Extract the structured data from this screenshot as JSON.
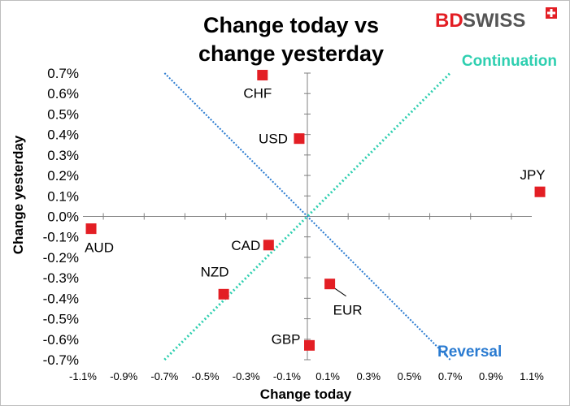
{
  "chart_data": {
    "type": "scatter",
    "title_lines": [
      "Change today vs",
      "change yesterday"
    ],
    "xlabel": "Change today",
    "ylabel": "Change yesterday",
    "xlim": [
      -1.1,
      1.1
    ],
    "ylim": [
      -0.7,
      0.7
    ],
    "x_ticks": [
      "-1.1%",
      "-0.9%",
      "-0.7%",
      "-0.5%",
      "-0.3%",
      "-0.1%",
      "0.1%",
      "0.3%",
      "0.5%",
      "0.7%",
      "0.9%",
      "1.1%"
    ],
    "y_ticks": [
      "0.7%",
      "0.6%",
      "0.5%",
      "0.4%",
      "0.3%",
      "0.2%",
      "0.1%",
      "0.0%",
      "-0.1%",
      "-0.2%",
      "-0.3%",
      "-0.4%",
      "-0.5%",
      "-0.6%",
      "-0.7%"
    ],
    "grid": false,
    "points": [
      {
        "label": "CHF",
        "x": -0.22,
        "y": 0.69
      },
      {
        "label": "USD",
        "x": -0.04,
        "y": 0.38
      },
      {
        "label": "JPY",
        "x": 1.14,
        "y": 0.12
      },
      {
        "label": "AUD",
        "x": -1.06,
        "y": -0.06
      },
      {
        "label": "CAD",
        "x": -0.19,
        "y": -0.14
      },
      {
        "label": "NZD",
        "x": -0.41,
        "y": -0.38
      },
      {
        "label": "EUR",
        "x": 0.11,
        "y": -0.33
      },
      {
        "label": "GBP",
        "x": 0.01,
        "y": -0.63
      }
    ],
    "marker_color": "#e31e24",
    "lines": [
      {
        "name": "Continuation",
        "from": [
          -0.7,
          -0.7
        ],
        "to": [
          0.7,
          0.7
        ],
        "color": "#2ecfb0"
      },
      {
        "name": "Reversal",
        "from": [
          -0.7,
          0.7
        ],
        "to": [
          0.7,
          -0.7
        ],
        "color": "#2a7bd1"
      }
    ],
    "annotations": {
      "continuation": "Continuation",
      "reversal": "Reversal"
    }
  },
  "logo": {
    "part1": "BD",
    "part2": "SWISS",
    "brand_color": "#e31e24"
  }
}
